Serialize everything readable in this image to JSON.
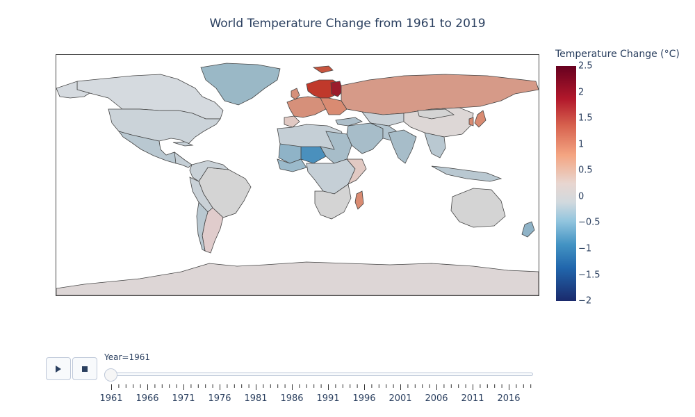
{
  "title": "World Temperature Change from 1961 to 2019",
  "colorbar": {
    "title": "Temperature Change (°C)",
    "ticks": [
      "2.5",
      "2",
      "1.5",
      "1",
      "0.5",
      "0",
      "−0.5",
      "−1",
      "−1.5",
      "−2"
    ],
    "range": [
      -2,
      2.5
    ]
  },
  "slider": {
    "label": "Year=1961",
    "tick_labels": [
      "1961",
      "1966",
      "1971",
      "1976",
      "1981",
      "1986",
      "1991",
      "1996",
      "2001",
      "2006",
      "2011",
      "2016"
    ]
  },
  "controls": {
    "play_icon": "play-icon",
    "stop_icon": "stop-icon"
  },
  "map": {
    "type": "choropleth",
    "projection": "equirectangular",
    "colorscale": "balance",
    "border_color": "#444444"
  }
}
